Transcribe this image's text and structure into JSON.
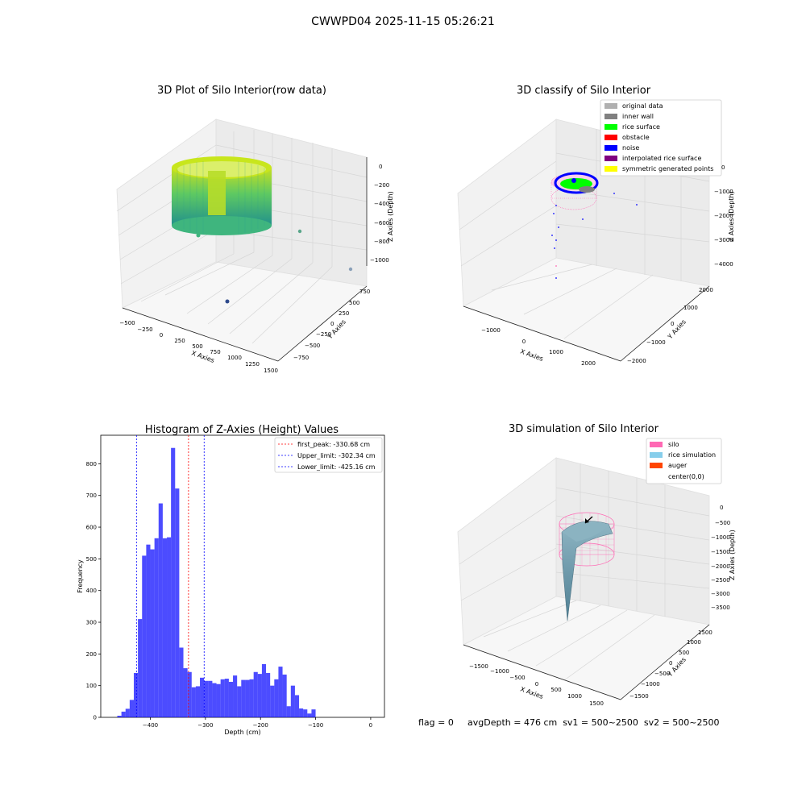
{
  "suptitle": "CWWPD04 2025-11-15 05:26:21",
  "panel1": {
    "title": "3D Plot of Silo Interior(row data)",
    "xlabel": "X Axies",
    "ylabel": "Y Axies",
    "zlabel": "Z Axies (Depth)",
    "x_ticks": [
      "−500",
      "−250",
      "0",
      "250",
      "500",
      "750",
      "1000",
      "1250",
      "1500"
    ],
    "y_ticks": [
      "750",
      "500",
      "250",
      "0",
      "−250",
      "−500",
      "−750"
    ],
    "z_ticks": [
      "0",
      "−200",
      "−400",
      "−600",
      "−800",
      "−1000"
    ]
  },
  "panel2": {
    "title": "3D classify of Silo Interior",
    "xlabel": "X Axies",
    "ylabel": "Y Axies",
    "zlabel": "Z Axies (Depth)",
    "x_ticks": [
      "−1000",
      "0",
      "1000",
      "2000"
    ],
    "y_ticks": [
      "2000",
      "1000",
      "0",
      "−1000",
      "−2000"
    ],
    "z_ticks": [
      "0",
      "−1000",
      "−2000",
      "−3000",
      "−4000"
    ],
    "legend": [
      {
        "label": "original data",
        "color": "#b0b0b0"
      },
      {
        "label": "inner wall",
        "color": "#808080"
      },
      {
        "label": "rice surface",
        "color": "#00ff00"
      },
      {
        "label": "obstacle",
        "color": "#ff0000"
      },
      {
        "label": "noise",
        "color": "#0000ff"
      },
      {
        "label": "interpolated rice surface",
        "color": "#800080"
      },
      {
        "label": "symmetric generated points",
        "color": "#ffff00"
      }
    ]
  },
  "panel3": {
    "title": "Histogram of Z-Axies (Height) Values",
    "legend": [
      {
        "label": "first_peak: -330.68 cm",
        "color": "#ff0000"
      },
      {
        "label": "Upper_limit: -302.34 cm",
        "color": "#0000ff"
      },
      {
        "label": "Lower_limit: -425.16 cm",
        "color": "#0000ff"
      }
    ]
  },
  "panel4": {
    "title": "3D simulation of Silo Interior",
    "xlabel": "X Axies",
    "ylabel": "Y Axies",
    "zlabel": "Z Axies (Depth)",
    "x_ticks": [
      "−1500",
      "−1000",
      "−500",
      "0",
      "500",
      "1000",
      "1500"
    ],
    "y_ticks": [
      "1500",
      "1000",
      "500",
      "0",
      "−500",
      "−1000",
      "−1500"
    ],
    "z_ticks": [
      "0",
      "−500",
      "−1000",
      "−1500",
      "−2000",
      "−2500",
      "−3000",
      "−3500"
    ],
    "legend": [
      {
        "label": "silo",
        "color": "#ff69b4"
      },
      {
        "label": "rice simulation",
        "color": "#87ceeb"
      },
      {
        "label": "auger",
        "color": "#ff4500"
      },
      {
        "label": "center(0,0)",
        "color": ""
      }
    ]
  },
  "footer": {
    "flag": "flag = 0",
    "stats": "avgDepth = 476 cm  sv1 = 500~2500  sv2 = 500~2500"
  },
  "chart_data": {
    "type": "bar",
    "title": "Histogram of Z-Axies (Height) Values",
    "xlabel": "Depth (cm)",
    "ylabel": "Frequency",
    "xlim": [
      -490,
      25
    ],
    "ylim": [
      0,
      890
    ],
    "x_ticks": [
      -400,
      -300,
      -200,
      -100,
      0
    ],
    "x_tick_labels": [
      "−400",
      "−300",
      "−200",
      "−100",
      "0"
    ],
    "y_ticks": [
      0,
      100,
      200,
      300,
      400,
      500,
      600,
      700,
      800
    ],
    "bar_color": "#0000ff",
    "bar_alpha": 0.7,
    "bins": [
      {
        "left": -460.0,
        "right": -452.5,
        "count": 5
      },
      {
        "left": -452.5,
        "right": -445.0,
        "count": 18
      },
      {
        "left": -445.0,
        "right": -437.5,
        "count": 27
      },
      {
        "left": -437.5,
        "right": -430.0,
        "count": 55
      },
      {
        "left": -430.0,
        "right": -422.5,
        "count": 140
      },
      {
        "left": -422.5,
        "right": -415.0,
        "count": 310
      },
      {
        "left": -415.0,
        "right": -407.5,
        "count": 510
      },
      {
        "left": -407.5,
        "right": -400.0,
        "count": 545
      },
      {
        "left": -400.0,
        "right": -392.5,
        "count": 530
      },
      {
        "left": -392.5,
        "right": -385.0,
        "count": 565
      },
      {
        "left": -385.0,
        "right": -377.5,
        "count": 675
      },
      {
        "left": -377.5,
        "right": -370.0,
        "count": 565
      },
      {
        "left": -370.0,
        "right": -362.5,
        "count": 568
      },
      {
        "left": -362.5,
        "right": -355.0,
        "count": 850
      },
      {
        "left": -355.0,
        "right": -347.5,
        "count": 722
      },
      {
        "left": -347.5,
        "right": -340.0,
        "count": 220
      },
      {
        "left": -340.0,
        "right": -332.5,
        "count": 155
      },
      {
        "left": -332.5,
        "right": -325.0,
        "count": 143
      },
      {
        "left": -325.0,
        "right": -317.5,
        "count": 95
      },
      {
        "left": -317.5,
        "right": -310.0,
        "count": 98
      },
      {
        "left": -310.0,
        "right": -302.5,
        "count": 125
      },
      {
        "left": -302.5,
        "right": -295.0,
        "count": 115
      },
      {
        "left": -295.0,
        "right": -287.5,
        "count": 115
      },
      {
        "left": -287.5,
        "right": -280.0,
        "count": 108
      },
      {
        "left": -280.0,
        "right": -272.5,
        "count": 105
      },
      {
        "left": -272.5,
        "right": -265.0,
        "count": 120
      },
      {
        "left": -265.0,
        "right": -257.5,
        "count": 122
      },
      {
        "left": -257.5,
        "right": -250.0,
        "count": 112
      },
      {
        "left": -250.0,
        "right": -242.5,
        "count": 132
      },
      {
        "left": -242.5,
        "right": -235.0,
        "count": 98
      },
      {
        "left": -235.0,
        "right": -227.5,
        "count": 118
      },
      {
        "left": -227.5,
        "right": -220.0,
        "count": 118
      },
      {
        "left": -220.0,
        "right": -212.5,
        "count": 120
      },
      {
        "left": -212.5,
        "right": -205.0,
        "count": 143
      },
      {
        "left": -205.0,
        "right": -197.5,
        "count": 137
      },
      {
        "left": -197.5,
        "right": -190.0,
        "count": 168
      },
      {
        "left": -190.0,
        "right": -182.5,
        "count": 140
      },
      {
        "left": -182.5,
        "right": -175.0,
        "count": 100
      },
      {
        "left": -175.0,
        "right": -167.5,
        "count": 120
      },
      {
        "left": -167.5,
        "right": -160.0,
        "count": 160
      },
      {
        "left": -160.0,
        "right": -152.5,
        "count": 135
      },
      {
        "left": -152.5,
        "right": -145.0,
        "count": 35
      },
      {
        "left": -145.0,
        "right": -137.5,
        "count": 100
      },
      {
        "left": -137.5,
        "right": -130.0,
        "count": 70
      },
      {
        "left": -130.0,
        "right": -122.5,
        "count": 28
      },
      {
        "left": -122.5,
        "right": -115.0,
        "count": 25
      },
      {
        "left": -115.0,
        "right": -107.5,
        "count": 12
      },
      {
        "left": -107.5,
        "right": -100.0,
        "count": 25
      }
    ],
    "vlines": [
      {
        "x": -330.68,
        "label": "first_peak: -330.68 cm",
        "color": "#ff0000"
      },
      {
        "x": -302.34,
        "label": "Upper_limit: -302.34 cm",
        "color": "#0000ff"
      },
      {
        "x": -425.16,
        "label": "Lower_limit: -425.16 cm",
        "color": "#0000ff"
      }
    ]
  }
}
